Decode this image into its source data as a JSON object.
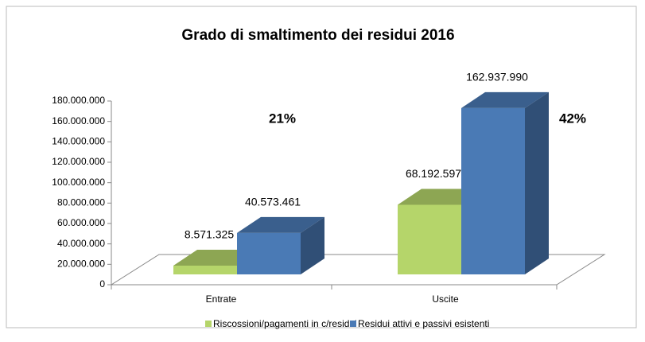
{
  "chart_data": {
    "type": "bar3d",
    "title": "Grado di smaltimento dei residui 2016",
    "categories": [
      "Entrate",
      "Uscite"
    ],
    "series": [
      {
        "name": "Riscossioni/pagamenti in c/residui",
        "color": "#b5d56a",
        "values": [
          8571325,
          68192597
        ],
        "value_labels": [
          "8.571.325",
          "68.192.597"
        ]
      },
      {
        "name": "Residui attivi e passivi esistenti",
        "color": "#4a7ab5",
        "values": [
          40573461,
          162937990
        ],
        "value_labels": [
          "40.573.461",
          "162.937.990"
        ]
      }
    ],
    "annotations": [
      "21%",
      "42%"
    ],
    "ylim": [
      0,
      180000000
    ],
    "yticks": [
      0,
      {
        "value": 20000000,
        "label": "20.000.000"
      },
      {
        "value": 40000000,
        "label": "40.000.000"
      },
      {
        "value": 60000000,
        "label": "60.000.000"
      },
      {
        "value": 80000000,
        "label": "80.000.000"
      },
      {
        "value": 100000000,
        "label": "100.000.000"
      },
      {
        "value": 120000000,
        "label": "120.000.000"
      },
      {
        "value": 140000000,
        "label": "140.000.000"
      },
      {
        "value": 160000000,
        "label": "160.000.000"
      },
      {
        "value": 180000000,
        "label": "180.000.000"
      }
    ],
    "legend": "bottom"
  }
}
